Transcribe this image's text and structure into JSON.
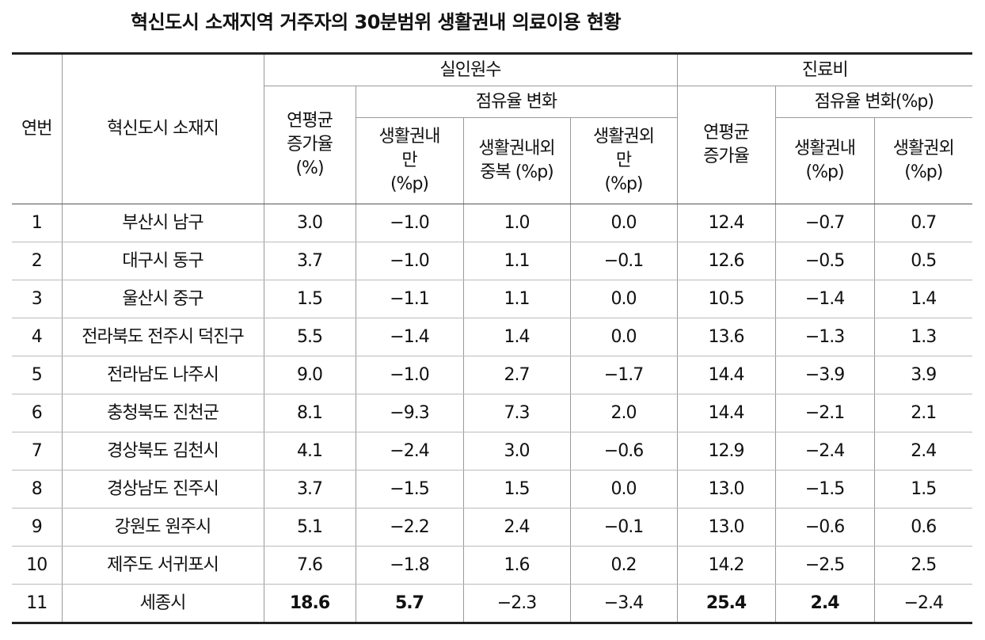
{
  "title": "혁신도시 소재지역 거주자의 30분범위 생활권내 의료이용 현황",
  "header": {
    "no": "연번",
    "city": "혁신도시 소재지",
    "group_a": "실인원수",
    "group_b": "진료비",
    "a_growth": "연평균\n증가율\n(%)",
    "a_share": "점유율 변화",
    "a_in": "생활권내\n만\n(%p)",
    "a_both": "생활권내외\n중복 (%p)",
    "a_out": "생활권외\n만\n(%p)",
    "b_growth": "연평균\n증가율",
    "b_share": "점유율 변화(%p)",
    "b_in": "생활권내\n(%p)",
    "b_out": "생활권외\n(%p)"
  },
  "table": {
    "rows": [
      [
        "1",
        "부산시 남구",
        "3.0",
        "−1.0",
        "1.0",
        "0.0",
        "12.4",
        "−0.7",
        "0.7"
      ],
      [
        "2",
        "대구시 동구",
        "3.7",
        "−1.0",
        "1.1",
        "−0.1",
        "12.6",
        "−0.5",
        "0.5"
      ],
      [
        "3",
        "울산시 중구",
        "1.5",
        "−1.1",
        "1.1",
        "0.0",
        "10.5",
        "−1.4",
        "1.4"
      ],
      [
        "4",
        "전라북도 전주시 덕진구",
        "5.5",
        "−1.4",
        "1.4",
        "0.0",
        "13.6",
        "−1.3",
        "1.3"
      ],
      [
        "5",
        "전라남도 나주시",
        "9.0",
        "−1.0",
        "2.7",
        "−1.7",
        "14.4",
        "−3.9",
        "3.9"
      ],
      [
        "6",
        "충청북도 진천군",
        "8.1",
        "−9.3",
        "7.3",
        "2.0",
        "14.4",
        "−2.1",
        "2.1"
      ],
      [
        "7",
        "경상북도 김천시",
        "4.1",
        "−2.4",
        "3.0",
        "−0.6",
        "12.9",
        "−2.4",
        "2.4"
      ],
      [
        "8",
        "경상남도 진주시",
        "3.7",
        "−1.5",
        "1.5",
        "0.0",
        "13.0",
        "−1.5",
        "1.5"
      ],
      [
        "9",
        "강원도 원주시",
        "5.1",
        "−2.2",
        "2.4",
        "−0.1",
        "13.0",
        "−0.6",
        "0.6"
      ],
      [
        "10",
        "제주도 서귀포시",
        "7.6",
        "−1.8",
        "1.6",
        "0.2",
        "14.2",
        "−2.5",
        "2.5"
      ],
      [
        "11",
        "세종시",
        "18.6",
        "5.7",
        "−2.3",
        "−3.4",
        "25.4",
        "2.4",
        "−2.4"
      ]
    ]
  }
}
